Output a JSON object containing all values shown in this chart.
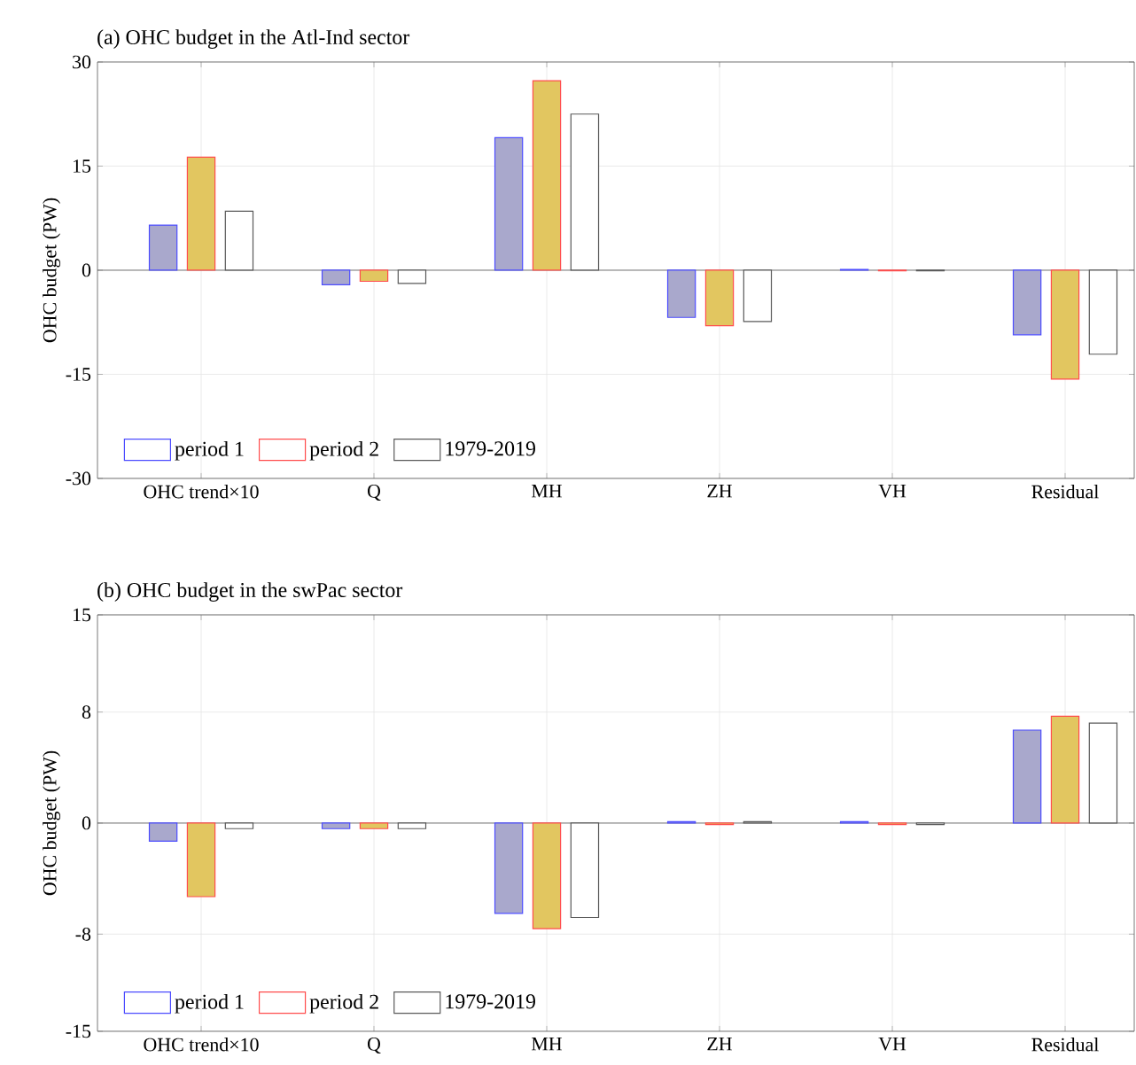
{
  "chart_data": [
    {
      "type": "bar",
      "title": "(a) OHC budget in the Atl-Ind sector",
      "ylabel": "OHC budget (PW)",
      "categories": [
        "OHC trend×10",
        "Q",
        "MH",
        "ZH",
        "VH",
        "Residual"
      ],
      "series": [
        {
          "name": "period 1",
          "color": "#a9a8cc",
          "values": [
            6.5,
            -2.1,
            19.1,
            -6.8,
            0.1,
            -9.3
          ]
        },
        {
          "name": "period 2",
          "color": "#e2c660",
          "values": [
            16.3,
            -1.6,
            27.3,
            -8.0,
            -0.1,
            -15.7
          ]
        },
        {
          "name": "1979-2019",
          "color": "#ffffff",
          "values": [
            8.5,
            -1.9,
            22.5,
            -7.4,
            -0.1,
            -12.1
          ]
        }
      ],
      "ylim": [
        -30,
        30
      ],
      "yticks": [
        -30,
        -15,
        0,
        15,
        30
      ],
      "grid": true,
      "legend": "bottom left"
    },
    {
      "type": "bar",
      "title": "(b) OHC budget in the swPac sector",
      "ylabel": "OHC budget (PW)",
      "categories": [
        "OHC trend×10",
        "Q",
        "MH",
        "ZH",
        "VH",
        "Residual"
      ],
      "series": [
        {
          "name": "period 1",
          "color": "#a9a8cc",
          "values": [
            -1.3,
            -0.4,
            -6.5,
            0.1,
            0.1,
            6.7
          ]
        },
        {
          "name": "period 2",
          "color": "#e2c660",
          "values": [
            -5.3,
            -0.4,
            -7.6,
            -0.1,
            -0.1,
            7.7
          ]
        },
        {
          "name": "1979-2019",
          "color": "#ffffff",
          "values": [
            -0.4,
            -0.4,
            -6.8,
            0.1,
            -0.1,
            7.2
          ]
        }
      ],
      "ylim": [
        -15,
        15
      ],
      "yticks": [
        -15,
        -8,
        0,
        8,
        15
      ],
      "grid": true,
      "legend": "bottom left"
    }
  ]
}
